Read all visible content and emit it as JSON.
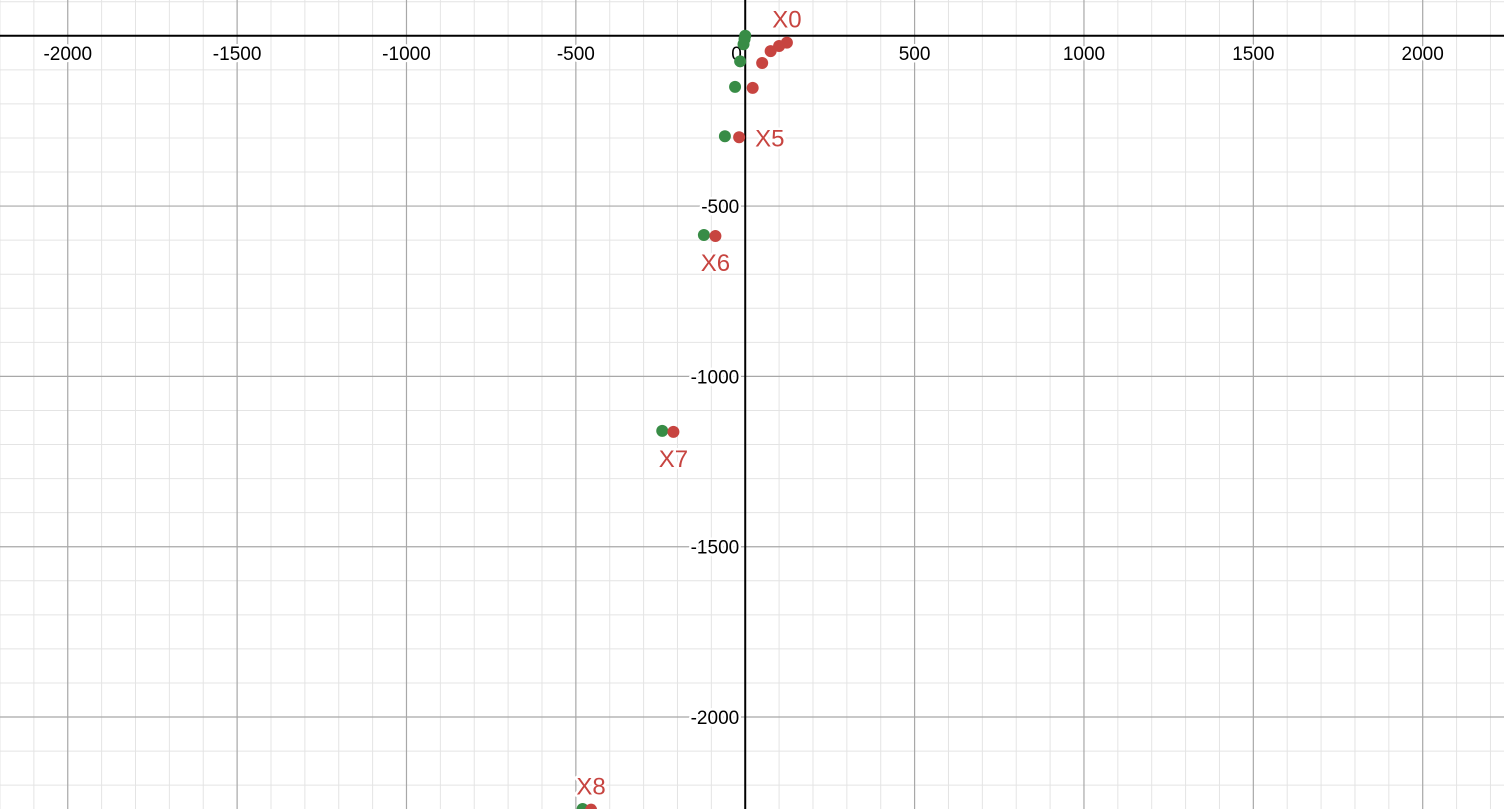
{
  "chart_data": {
    "type": "scatter",
    "xlim": [
      -2200,
      2240
    ],
    "ylim": [
      -2270,
      105
    ],
    "grid": true,
    "major_step": 500,
    "minor_step": 100,
    "x_ticks": [
      -2000,
      -1500,
      -1000,
      -500,
      0,
      500,
      1000,
      1500,
      2000
    ],
    "y_ticks": [
      -500,
      -1000,
      -1500,
      -2000
    ],
    "x_tick_labels": [
      "-2000",
      "-1500",
      "-1000",
      "-500",
      "0",
      "500",
      "1000",
      "1500",
      "2000"
    ],
    "y_tick_labels": [
      "-500",
      "-1000",
      "-1500",
      "-2000"
    ],
    "series": [
      {
        "color": "#388c46",
        "points": [
          {
            "x": 0,
            "y": 0
          },
          {
            "x": -2,
            "y": -10
          },
          {
            "x": -5,
            "y": -25
          },
          {
            "x": -15,
            "y": -75
          },
          {
            "x": -30,
            "y": -150
          },
          {
            "x": -60,
            "y": -295
          },
          {
            "x": -122,
            "y": -585
          },
          {
            "x": -245,
            "y": -1160
          },
          {
            "x": -480,
            "y": -2270
          }
        ]
      },
      {
        "color": "#c74440",
        "points": [
          {
            "x": 123,
            "y": -20
          },
          {
            "x": 100,
            "y": -30
          },
          {
            "x": 75,
            "y": -45
          },
          {
            "x": 50,
            "y": -80
          },
          {
            "x": 22,
            "y": -153
          },
          {
            "x": -18,
            "y": -298
          },
          {
            "x": -88,
            "y": -588
          },
          {
            "x": -212,
            "y": -1163
          },
          {
            "x": -455,
            "y": -2272
          }
        ]
      }
    ],
    "annotations": [
      {
        "text": "X0",
        "x": 123,
        "y": -20,
        "color": "#c74440",
        "pos": "above"
      },
      {
        "text": "X5",
        "x": -18,
        "y": -298,
        "color": "#c74440",
        "pos": "right"
      },
      {
        "text": "X6",
        "x": -88,
        "y": -588,
        "color": "#c74440",
        "pos": "below"
      },
      {
        "text": "X7",
        "x": -212,
        "y": -1163,
        "color": "#c74440",
        "pos": "below"
      },
      {
        "text": "X8",
        "x": -455,
        "y": -2272,
        "color": "#c74440",
        "pos": "above"
      }
    ]
  }
}
